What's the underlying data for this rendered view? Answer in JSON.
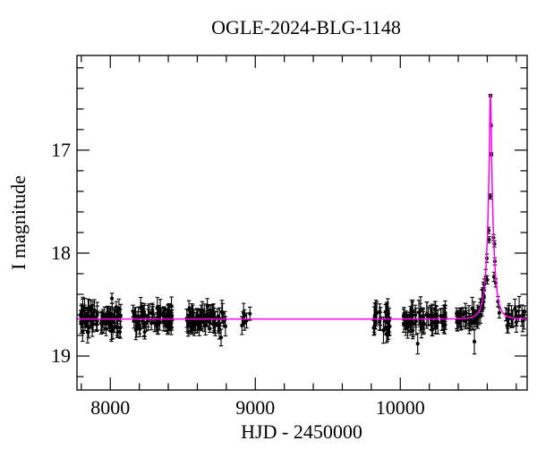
{
  "title": "OGLE-2024-BLG-1148",
  "colors": {
    "background": "#ffffff",
    "frame": "#000000",
    "data_points": "#000000",
    "error_bars": "#000000",
    "model_curve": "#ff00f0",
    "text": "#000000"
  },
  "axes": {
    "x": {
      "label": "HJD - 2450000",
      "range": [
        7770,
        10875
      ],
      "major_ticks": [
        {
          "value": 8000,
          "label": "8000"
        },
        {
          "value": 9000,
          "label": "9000"
        },
        {
          "value": 10000,
          "label": "10000"
        }
      ],
      "minor_tick_start": 7800,
      "minor_tick_step": 200,
      "minor_tick_end": 10800
    },
    "y": {
      "label": "I magnitude",
      "range": [
        16.08,
        19.33
      ],
      "inverted": true,
      "major_ticks": [
        {
          "value": 17,
          "label": "17"
        },
        {
          "value": 18,
          "label": "18"
        },
        {
          "value": 19,
          "label": "19"
        }
      ],
      "minor_tick_start": 16.2,
      "minor_tick_step": 0.2,
      "minor_tick_end": 19.2
    }
  },
  "chart_data": {
    "type": "scatter",
    "title": "OGLE-2024-BLG-1148",
    "xlabel": "HJD - 2450000",
    "ylabel": "I magnitude",
    "xlim": [
      7770,
      10875
    ],
    "ylim": [
      19.33,
      16.08
    ],
    "grid": false,
    "legend": false,
    "baseline_mag": 18.64,
    "model": {
      "kind": "paczynski_microlensing",
      "t0": 10622,
      "tE": 42,
      "u0": 0.135,
      "baseline_mag": 18.64,
      "peak_mag": 16.46,
      "color": "#ff00f0"
    },
    "season_clusters": [
      {
        "name": "season-1",
        "t_start": 7795,
        "t_end": 8072,
        "n": 90,
        "mag_scatter": 0.055,
        "err_min": 0.05,
        "err_max": 0.11
      },
      {
        "name": "season-2",
        "t_start": 8153,
        "t_end": 8430,
        "n": 80,
        "mag_scatter": 0.055,
        "err_min": 0.05,
        "err_max": 0.11
      },
      {
        "name": "season-3",
        "t_start": 8523,
        "t_end": 8801,
        "n": 68,
        "mag_scatter": 0.055,
        "err_min": 0.05,
        "err_max": 0.12
      },
      {
        "name": "season-3-end",
        "t_start": 8906,
        "t_end": 8967,
        "n": 7,
        "mag_scatter": 0.04,
        "err_min": 0.05,
        "err_max": 0.1
      },
      {
        "name": "season-4",
        "t_start": 9801,
        "t_end": 9936,
        "n": 26,
        "mag_scatter": 0.06,
        "err_min": 0.06,
        "err_max": 0.13
      },
      {
        "name": "season-5",
        "t_start": 10017,
        "t_end": 10313,
        "n": 66,
        "mag_scatter": 0.06,
        "err_min": 0.06,
        "err_max": 0.13
      },
      {
        "name": "season-6-rise",
        "t_start": 10387,
        "t_end": 10591,
        "n": 48,
        "mag_scatter": 0.045,
        "err_min": 0.05,
        "err_max": 0.11
      },
      {
        "name": "season-6-post-peak",
        "t_start": 10727,
        "t_end": 10862,
        "n": 22,
        "mag_scatter": 0.05,
        "err_min": 0.05,
        "err_max": 0.11
      }
    ],
    "event_points": [
      {
        "t": 10597,
        "mag": 18.05,
        "err": 0.04
      },
      {
        "t": 10600,
        "mag": 18.26,
        "err": 0.04
      },
      {
        "t": 10609,
        "mag": 17.78,
        "err": 0.03
      },
      {
        "t": 10612,
        "mag": 17.87,
        "err": 0.03
      },
      {
        "t": 10619,
        "mag": 17.45,
        "err": 0.025
      },
      {
        "t": 10622,
        "mag": 16.47,
        "err": 0.012
      },
      {
        "t": 10625,
        "mag": 16.76,
        "err": 0.012
      },
      {
        "t": 10628,
        "mag": 17.04,
        "err": 0.015
      },
      {
        "t": 10643,
        "mag": 17.85,
        "err": 0.03
      },
      {
        "t": 10646,
        "mag": 18.23,
        "err": 0.045
      },
      {
        "t": 10649,
        "mag": 17.91,
        "err": 0.03
      },
      {
        "t": 10652,
        "mag": 18.08,
        "err": 0.035
      },
      {
        "t": 10658,
        "mag": 18.29,
        "err": 0.04
      },
      {
        "t": 10674,
        "mag": 18.47,
        "err": 0.05
      },
      {
        "t": 10683,
        "mag": 18.58,
        "err": 0.05
      }
    ],
    "outlier_points": [
      {
        "t": 8011,
        "mag": 18.44,
        "err": 0.05
      },
      {
        "t": 8764,
        "mag": 18.82,
        "err": 0.08
      },
      {
        "t": 9906,
        "mag": 18.79,
        "err": 0.08
      },
      {
        "t": 10120,
        "mag": 18.88,
        "err": 0.1
      },
      {
        "t": 10511,
        "mag": 18.86,
        "err": 0.12
      }
    ],
    "random_seed": 1148
  }
}
